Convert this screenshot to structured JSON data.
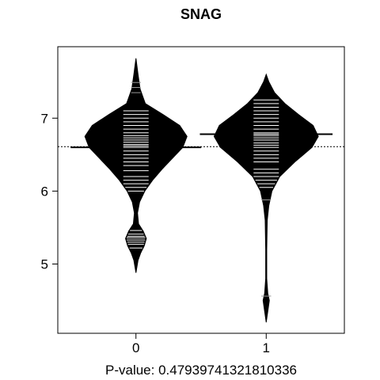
{
  "chart_data": {
    "type": "beanplot",
    "title": "SNAG",
    "xlabel": "P-value: 0.47939741321810336",
    "ylabel": "",
    "categories": [
      "0",
      "1"
    ],
    "y_ticks": [
      5,
      6,
      7
    ],
    "ylim": [
      4.05,
      7.98
    ],
    "overall_mean": 6.61,
    "grid": false,
    "colors": {
      "bean": "#000000",
      "line": "#ffffff",
      "background": "#ffffff"
    },
    "beans": [
      {
        "category": "0",
        "mean": 6.6,
        "density": [
          [
            4.88,
            0.0
          ],
          [
            5.05,
            0.04
          ],
          [
            5.15,
            0.09
          ],
          [
            5.25,
            0.16
          ],
          [
            5.35,
            0.2
          ],
          [
            5.45,
            0.14
          ],
          [
            5.55,
            0.05
          ],
          [
            5.7,
            0.03
          ],
          [
            5.85,
            0.07
          ],
          [
            6.0,
            0.17
          ],
          [
            6.15,
            0.32
          ],
          [
            6.3,
            0.5
          ],
          [
            6.45,
            0.7
          ],
          [
            6.6,
            0.9
          ],
          [
            6.75,
            0.98
          ],
          [
            6.9,
            0.84
          ],
          [
            7.05,
            0.52
          ],
          [
            7.2,
            0.18
          ],
          [
            7.4,
            0.08
          ],
          [
            7.6,
            0.04
          ],
          [
            7.82,
            0.0
          ]
        ],
        "observations": [
          5.22,
          5.27,
          5.3,
          5.33,
          5.36,
          5.38,
          5.41,
          5.46,
          6.0,
          6.05,
          6.1,
          6.15,
          6.2,
          6.28,
          6.35,
          6.4,
          6.45,
          6.5,
          6.55,
          6.6,
          6.62,
          6.64,
          6.67,
          6.7,
          6.73,
          6.76,
          6.8,
          6.85,
          6.9,
          6.95,
          7.0,
          7.05,
          7.1,
          7.35,
          7.42,
          7.49
        ]
      },
      {
        "category": "1",
        "mean": 6.78,
        "density": [
          [
            4.2,
            0.0
          ],
          [
            4.35,
            0.03
          ],
          [
            4.5,
            0.06
          ],
          [
            4.6,
            0.03
          ],
          [
            4.8,
            0.01
          ],
          [
            5.2,
            0.01
          ],
          [
            5.6,
            0.02
          ],
          [
            5.8,
            0.05
          ],
          [
            6.0,
            0.11
          ],
          [
            6.2,
            0.26
          ],
          [
            6.4,
            0.55
          ],
          [
            6.6,
            0.88
          ],
          [
            6.75,
            1.0
          ],
          [
            6.9,
            0.9
          ],
          [
            7.05,
            0.62
          ],
          [
            7.2,
            0.36
          ],
          [
            7.35,
            0.16
          ],
          [
            7.5,
            0.05
          ],
          [
            7.6,
            0.0
          ]
        ],
        "observations": [
          4.56,
          5.88,
          6.05,
          6.1,
          6.15,
          6.2,
          6.25,
          6.3,
          6.4,
          6.45,
          6.5,
          6.55,
          6.6,
          6.63,
          6.66,
          6.7,
          6.73,
          6.76,
          6.8,
          6.85,
          6.9,
          6.95,
          7.0,
          7.05,
          7.1,
          7.15,
          7.2,
          7.25
        ]
      }
    ]
  }
}
